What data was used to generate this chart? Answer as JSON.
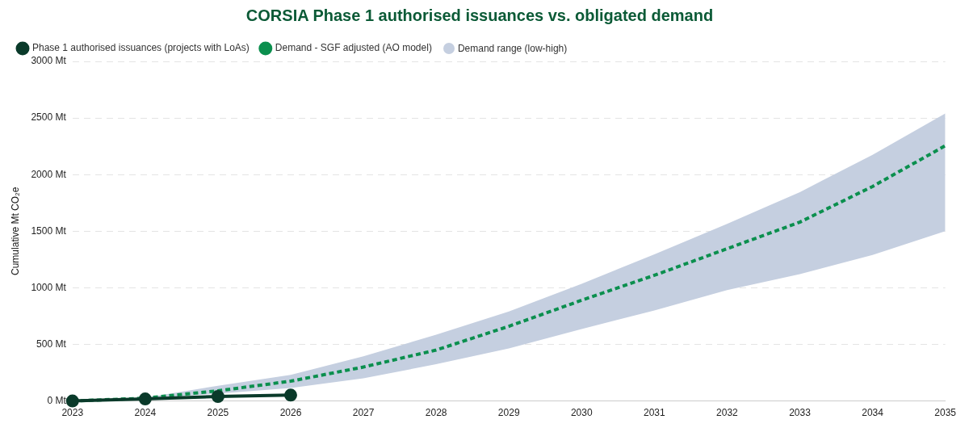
{
  "chart_data": {
    "type": "line",
    "title": "CORSIA Phase 1 authorised issuances vs. obligated demand",
    "ylabel": "Cumulative Mt CO₂e",
    "x": [
      2023,
      2024,
      2025,
      2026,
      2027,
      2028,
      2029,
      2030,
      2031,
      2032,
      2033,
      2034,
      2035
    ],
    "xlim": [
      2023,
      2035
    ],
    "xticks": [
      2023,
      2024,
      2025,
      2026,
      2027,
      2028,
      2029,
      2030,
      2031,
      2032,
      2033,
      2034,
      2035
    ],
    "ylim": [
      0,
      3000
    ],
    "yticks": [
      {
        "value": 0,
        "label": "0 Mt"
      },
      {
        "value": 500,
        "label": "500 Mt"
      },
      {
        "value": 1000,
        "label": "1000 Mt"
      },
      {
        "value": 1500,
        "label": "1500 Mt"
      },
      {
        "value": 2000,
        "label": "2000 Mt"
      },
      {
        "value": 2500,
        "label": "2500 Mt"
      },
      {
        "value": 3000,
        "label": "3000 Mt"
      }
    ],
    "grid": "y",
    "legend": "top left",
    "marker": "circle",
    "line_style": "solid",
    "annotations": [
      "Demand range (low-high)"
    ],
    "series": [
      {
        "name": "Phase 1 authorised issuances (projects with LoAs)",
        "color": "#0a3a2a",
        "x": [
          2023,
          2024,
          2025,
          2026
        ],
        "values": [
          0,
          18,
          40,
          52
        ]
      },
      {
        "name": "Demand - SGF adjusted (AO model)",
        "color": "#0b8f4e",
        "marker": "none",
        "line_style": "dashed",
        "values": [
          0,
          25,
          90,
          175,
          300,
          450,
          660,
          890,
          1110,
          1345,
          1580,
          1895,
          2255
        ],
        "lower": [
          0,
          20,
          65,
          115,
          200,
          325,
          465,
          635,
          800,
          980,
          1120,
          1290,
          1500
        ],
        "upper": [
          0,
          30,
          135,
          230,
          395,
          585,
          790,
          1035,
          1295,
          1565,
          1845,
          2175,
          2540
        ]
      }
    ]
  }
}
